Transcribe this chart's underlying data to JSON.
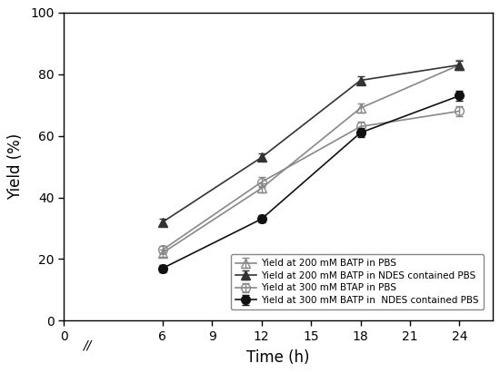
{
  "x": [
    6,
    12,
    18,
    24
  ],
  "series": [
    {
      "label": "Yield at 200 mM BATP in PBS",
      "y": [
        22,
        43,
        69,
        83
      ],
      "yerr": [
        1.2,
        1.5,
        1.5,
        1.5
      ],
      "marker": "^",
      "fillstyle": "none",
      "color": "#888888",
      "linewidth": 1.2,
      "markersize": 7
    },
    {
      "label": "Yield at 200 mM BATP in NDES contained PBS",
      "y": [
        32,
        53,
        78,
        83
      ],
      "yerr": [
        1.2,
        1.2,
        1.2,
        1.2
      ],
      "marker": "^",
      "fillstyle": "full",
      "color": "#333333",
      "linewidth": 1.2,
      "markersize": 7
    },
    {
      "label": "Yield at 300 mM BTAP in PBS",
      "y": [
        23,
        45,
        63,
        68
      ],
      "yerr": [
        1.2,
        1.5,
        1.5,
        1.5
      ],
      "marker": "o",
      "fillstyle": "none",
      "color": "#888888",
      "linewidth": 1.2,
      "markersize": 7
    },
    {
      "label": "Yield at 300 mM BATP in  NDES contained PBS",
      "y": [
        17,
        33,
        61,
        73
      ],
      "yerr": [
        1.2,
        1.2,
        1.5,
        1.5
      ],
      "marker": "o",
      "fillstyle": "full",
      "color": "#111111",
      "linewidth": 1.2,
      "markersize": 7
    }
  ],
  "xlabel": "Time (h)",
  "ylabel": "Yield (%)",
  "xlim": [
    0,
    26
  ],
  "ylim": [
    0,
    100
  ],
  "xticks": [
    0,
    6,
    9,
    12,
    15,
    18,
    21,
    24
  ],
  "yticks": [
    0,
    20,
    40,
    60,
    80,
    100
  ],
  "legend_fontsize": 7.5,
  "axis_fontsize": 12,
  "tick_fontsize": 10,
  "background_color": "#ffffff"
}
